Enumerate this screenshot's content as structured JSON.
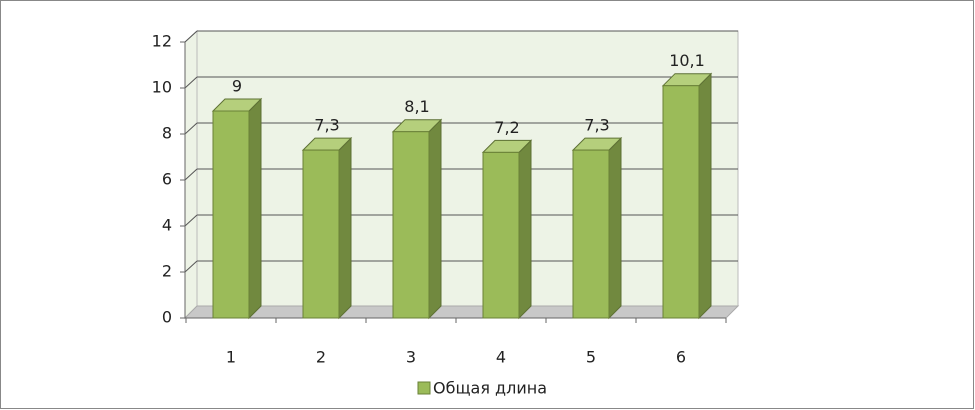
{
  "chart_data": {
    "type": "bar3d",
    "categories": [
      "1",
      "2",
      "3",
      "4",
      "5",
      "6"
    ],
    "series": [
      {
        "name": "Общая длина",
        "color": "#9bbb59",
        "values": [
          9,
          7.3,
          8.1,
          7.2,
          7.3,
          10.1
        ],
        "value_labels": [
          "9",
          "7,3",
          "8,1",
          "7,2",
          "7,3",
          "10,1"
        ]
      }
    ],
    "ylim": [
      0,
      12
    ],
    "yticks": [
      0,
      2,
      4,
      6,
      8,
      10,
      12
    ],
    "grid": true,
    "legend": "bottom"
  }
}
